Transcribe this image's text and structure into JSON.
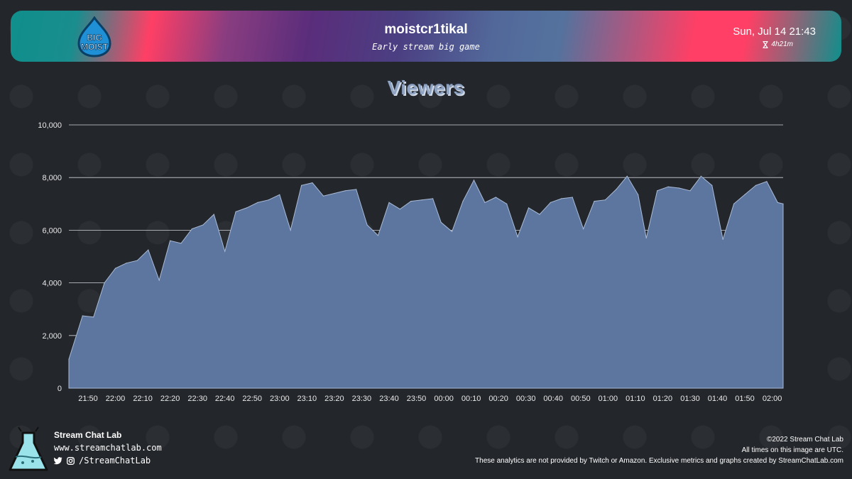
{
  "header": {
    "logo_text_top": "BIG",
    "logo_text_bottom": "MOIST",
    "channel": "moistcr1tikal",
    "subtitle": "Early stream big game",
    "date": "Sun, Jul 14 21:43",
    "duration": "4h21m"
  },
  "chart_data": {
    "type": "area",
    "title": "Viewers",
    "xlabel": "",
    "ylabel": "",
    "ylim": [
      0,
      10000
    ],
    "yticks": [
      0,
      2000,
      4000,
      6000,
      8000,
      10000
    ],
    "ytick_labels": [
      "0",
      "2,000",
      "4,000",
      "6,000",
      "8,000",
      "10,000"
    ],
    "xtick_labels": [
      "21:50",
      "22:00",
      "22:10",
      "22:20",
      "22:30",
      "22:40",
      "22:50",
      "23:00",
      "23:10",
      "23:20",
      "23:30",
      "23:40",
      "23:50",
      "00:00",
      "00:10",
      "00:20",
      "00:30",
      "00:40",
      "00:50",
      "01:00",
      "01:10",
      "01:20",
      "01:30",
      "01:40",
      "01:50",
      "02:00"
    ],
    "color": "#5d76a0",
    "grid": true,
    "series": [
      {
        "x": [
          "21:43",
          "21:48",
          "21:52",
          "21:56",
          "22:00",
          "22:04",
          "22:08",
          "22:12",
          "22:16",
          "22:20",
          "22:24",
          "22:28",
          "22:32",
          "22:36",
          "22:40",
          "22:44",
          "22:48",
          "22:52",
          "22:56",
          "23:00",
          "23:04",
          "23:08",
          "23:12",
          "23:16",
          "23:20",
          "23:24",
          "23:28",
          "23:32",
          "23:36",
          "23:40",
          "23:44",
          "23:48",
          "23:52",
          "23:56",
          "23:59",
          "00:03",
          "00:07",
          "00:11",
          "00:15",
          "00:19",
          "00:23",
          "00:27",
          "00:31",
          "00:35",
          "00:39",
          "00:43",
          "00:47",
          "00:51",
          "00:55",
          "00:59",
          "01:03",
          "01:07",
          "01:11",
          "01:14",
          "01:18",
          "01:22",
          "01:26",
          "01:30",
          "01:34",
          "01:38",
          "01:42",
          "01:46",
          "01:50",
          "01:54",
          "01:58",
          "02:02",
          "02:04"
        ],
        "values": [
          1100,
          2750,
          2700,
          4000,
          4550,
          4750,
          4850,
          5250,
          4100,
          5600,
          5500,
          6050,
          6200,
          6600,
          5200,
          6700,
          6850,
          7050,
          7150,
          7350,
          6000,
          7700,
          7800,
          7300,
          7400,
          7500,
          7550,
          6200,
          5800,
          7050,
          6800,
          7100,
          7150,
          7200,
          6300,
          5950,
          7100,
          7900,
          7050,
          7250,
          7000,
          5750,
          6850,
          6600,
          7050,
          7200,
          7250,
          6050,
          7100,
          7150,
          7550,
          8050,
          7350,
          5700,
          7500,
          7650,
          7600,
          7500,
          8050,
          7700,
          5650,
          7000,
          7350,
          7700,
          7850,
          7050,
          7000
        ]
      }
    ]
  },
  "footer": {
    "brand": "Stream Chat Lab",
    "url": "www.streamchatlab.com",
    "social": "/StreamChatLab",
    "copyright": "©2022 Stream Chat Lab",
    "timezone_note": "All times on this image are UTC.",
    "disclaimer": "These analytics are not provided by Twitch or Amazon. Exclusive metrics and graphs created by StreamChatLab.com"
  }
}
